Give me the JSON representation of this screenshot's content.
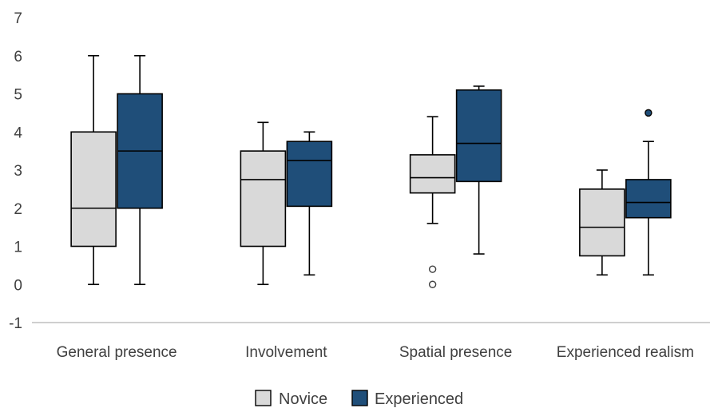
{
  "chart_data": {
    "type": "box",
    "title": "",
    "xlabel": "",
    "ylabel": "",
    "ylim": [
      -1,
      7
    ],
    "yticks": [
      -1,
      0,
      1,
      2,
      3,
      4,
      5,
      6,
      7
    ],
    "grid": false,
    "legend_position": "bottom",
    "categories": [
      "General presence",
      "Involvement",
      "Spatial presence",
      "Experienced realism"
    ],
    "series": [
      {
        "name": "Novice",
        "color": "#d9d9d9",
        "boxes": [
          {
            "min": 0,
            "q1": 1,
            "median": 2,
            "q3": 4,
            "max": 6,
            "outliers": []
          },
          {
            "min": 0,
            "q1": 1,
            "median": 2.75,
            "q3": 3.5,
            "max": 4.25,
            "outliers": []
          },
          {
            "min": 1.6,
            "q1": 2.4,
            "median": 2.8,
            "q3": 3.4,
            "max": 4.4,
            "outliers": [
              0.4,
              0
            ]
          },
          {
            "min": 0.25,
            "q1": 0.75,
            "median": 1.5,
            "q3": 2.5,
            "max": 3,
            "outliers": []
          }
        ]
      },
      {
        "name": "Experienced",
        "color": "#1f4e79",
        "boxes": [
          {
            "min": 0,
            "q1": 2,
            "median": 3.5,
            "q3": 5,
            "max": 6,
            "outliers": []
          },
          {
            "min": 0.25,
            "q1": 2.05,
            "median": 3.25,
            "q3": 3.75,
            "max": 4,
            "outliers": []
          },
          {
            "min": 0.8,
            "q1": 2.7,
            "median": 3.7,
            "q3": 5.1,
            "max": 5.2,
            "outliers": []
          },
          {
            "min": 0.25,
            "q1": 1.75,
            "median": 2.15,
            "q3": 2.75,
            "max": 3.75,
            "outliers": [
              4.5
            ]
          }
        ]
      }
    ]
  }
}
